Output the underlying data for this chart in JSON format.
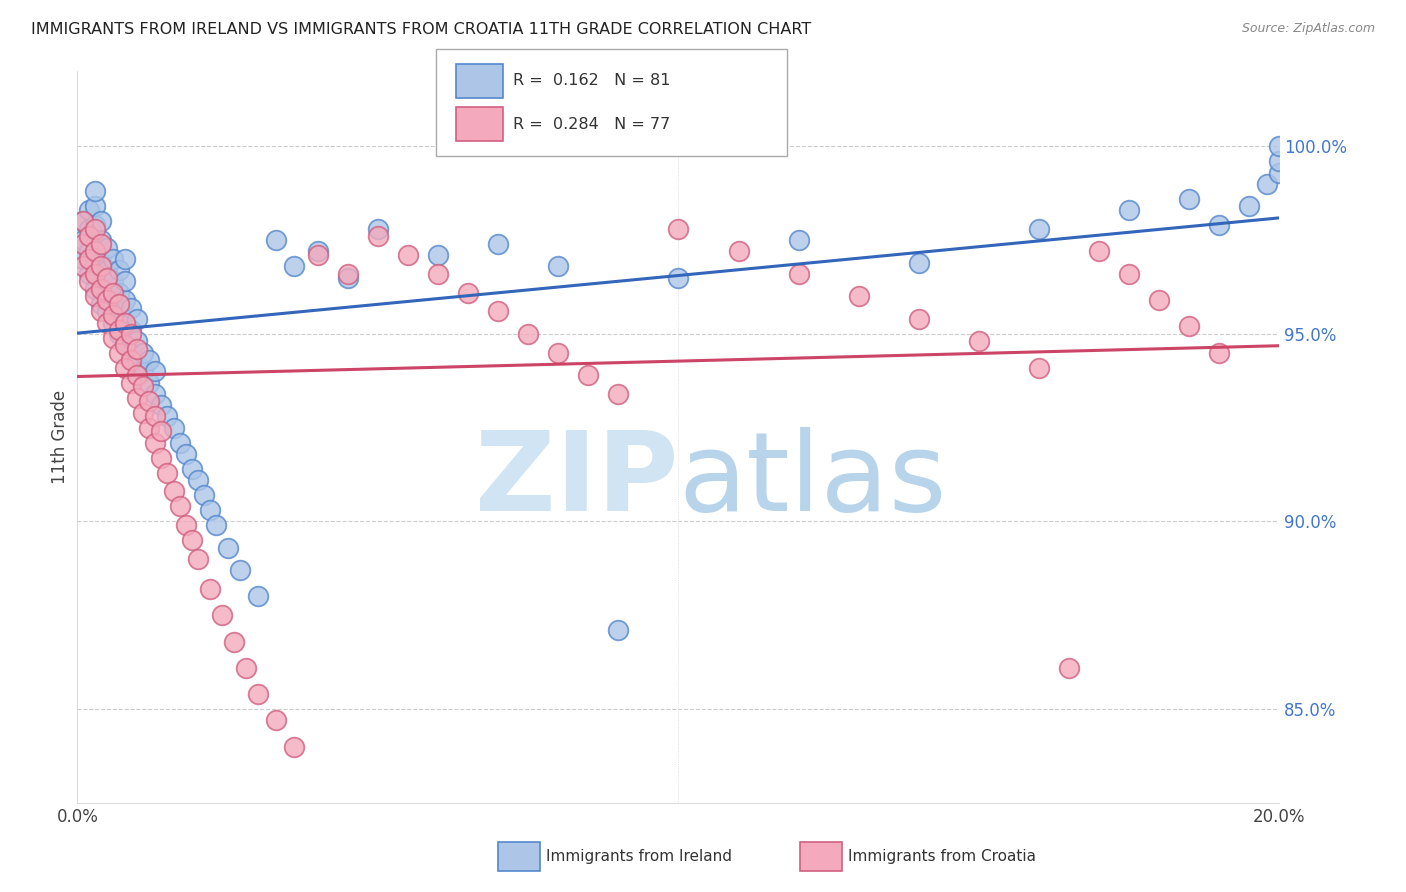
{
  "title": "IMMIGRANTS FROM IRELAND VS IMMIGRANTS FROM CROATIA 11TH GRADE CORRELATION CHART",
  "source": "Source: ZipAtlas.com",
  "ylabel": "11th Grade",
  "x_min": 0.0,
  "x_max": 0.2,
  "y_min": 0.825,
  "y_max": 1.02,
  "y_ticks_right": [
    0.85,
    0.9,
    0.95,
    1.0
  ],
  "y_tick_labels_right": [
    "85.0%",
    "90.0%",
    "95.0%",
    "100.0%"
  ],
  "ireland_color": "#adc6e8",
  "ireland_edge": "#5588cc",
  "croatia_color": "#f4aabc",
  "croatia_edge": "#d06080",
  "ireland_line_color": "#3366bb",
  "croatia_line_color": "#cc4466",
  "ireland_R": 0.162,
  "ireland_N": 81,
  "croatia_R": 0.284,
  "croatia_N": 77,
  "watermark_zip": "ZIP",
  "watermark_atlas": "atlas",
  "background_color": "#ffffff",
  "grid_color": "#cccccc",
  "title_color": "#222222",
  "right_axis_color": "#4477cc",
  "ireland_scatter_x": [
    0.001,
    0.001,
    0.001,
    0.002,
    0.002,
    0.002,
    0.002,
    0.003,
    0.003,
    0.003,
    0.003,
    0.003,
    0.003,
    0.004,
    0.004,
    0.004,
    0.004,
    0.004,
    0.005,
    0.005,
    0.005,
    0.005,
    0.006,
    0.006,
    0.006,
    0.006,
    0.007,
    0.007,
    0.007,
    0.007,
    0.008,
    0.008,
    0.008,
    0.008,
    0.008,
    0.009,
    0.009,
    0.009,
    0.01,
    0.01,
    0.01,
    0.011,
    0.011,
    0.012,
    0.012,
    0.013,
    0.013,
    0.014,
    0.015,
    0.016,
    0.017,
    0.018,
    0.019,
    0.02,
    0.021,
    0.022,
    0.023,
    0.025,
    0.027,
    0.03,
    0.033,
    0.036,
    0.04,
    0.045,
    0.05,
    0.06,
    0.07,
    0.08,
    0.09,
    0.1,
    0.12,
    0.14,
    0.16,
    0.175,
    0.185,
    0.19,
    0.195,
    0.198,
    0.2,
    0.2,
    0.2
  ],
  "ireland_scatter_y": [
    0.97,
    0.975,
    0.98,
    0.966,
    0.972,
    0.978,
    0.983,
    0.962,
    0.968,
    0.974,
    0.979,
    0.984,
    0.988,
    0.958,
    0.963,
    0.969,
    0.975,
    0.98,
    0.956,
    0.961,
    0.967,
    0.973,
    0.953,
    0.958,
    0.964,
    0.97,
    0.95,
    0.956,
    0.961,
    0.967,
    0.948,
    0.953,
    0.959,
    0.964,
    0.97,
    0.945,
    0.951,
    0.957,
    0.942,
    0.948,
    0.954,
    0.94,
    0.945,
    0.937,
    0.943,
    0.934,
    0.94,
    0.931,
    0.928,
    0.925,
    0.921,
    0.918,
    0.914,
    0.911,
    0.907,
    0.903,
    0.899,
    0.893,
    0.887,
    0.88,
    0.975,
    0.968,
    0.972,
    0.965,
    0.978,
    0.971,
    0.974,
    0.968,
    0.871,
    0.965,
    0.975,
    0.969,
    0.978,
    0.983,
    0.986,
    0.979,
    0.984,
    0.99,
    0.993,
    0.996,
    1.0
  ],
  "croatia_scatter_x": [
    0.001,
    0.001,
    0.001,
    0.002,
    0.002,
    0.002,
    0.003,
    0.003,
    0.003,
    0.003,
    0.004,
    0.004,
    0.004,
    0.004,
    0.005,
    0.005,
    0.005,
    0.006,
    0.006,
    0.006,
    0.007,
    0.007,
    0.007,
    0.008,
    0.008,
    0.008,
    0.009,
    0.009,
    0.009,
    0.01,
    0.01,
    0.01,
    0.011,
    0.011,
    0.012,
    0.012,
    0.013,
    0.013,
    0.014,
    0.014,
    0.015,
    0.016,
    0.017,
    0.018,
    0.019,
    0.02,
    0.022,
    0.024,
    0.026,
    0.028,
    0.03,
    0.033,
    0.036,
    0.04,
    0.045,
    0.05,
    0.055,
    0.06,
    0.065,
    0.07,
    0.075,
    0.08,
    0.085,
    0.09,
    0.1,
    0.11,
    0.12,
    0.13,
    0.14,
    0.15,
    0.16,
    0.165,
    0.17,
    0.175,
    0.18,
    0.185,
    0.19
  ],
  "croatia_scatter_y": [
    0.968,
    0.974,
    0.98,
    0.964,
    0.97,
    0.976,
    0.96,
    0.966,
    0.972,
    0.978,
    0.956,
    0.962,
    0.968,
    0.974,
    0.953,
    0.959,
    0.965,
    0.949,
    0.955,
    0.961,
    0.945,
    0.951,
    0.958,
    0.941,
    0.947,
    0.953,
    0.937,
    0.943,
    0.95,
    0.933,
    0.939,
    0.946,
    0.929,
    0.936,
    0.925,
    0.932,
    0.921,
    0.928,
    0.917,
    0.924,
    0.913,
    0.908,
    0.904,
    0.899,
    0.895,
    0.89,
    0.882,
    0.875,
    0.868,
    0.861,
    0.854,
    0.847,
    0.84,
    0.971,
    0.966,
    0.976,
    0.971,
    0.966,
    0.961,
    0.956,
    0.95,
    0.945,
    0.939,
    0.934,
    0.978,
    0.972,
    0.966,
    0.96,
    0.954,
    0.948,
    0.941,
    0.861,
    0.972,
    0.966,
    0.959,
    0.952,
    0.945
  ]
}
